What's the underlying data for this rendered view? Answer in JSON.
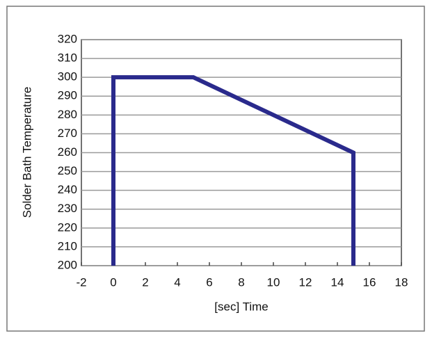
{
  "chart_data": {
    "type": "line",
    "x_label": "[sec] Time",
    "y_label": "Solder Bath Temperature",
    "x": [
      0,
      0,
      5,
      15,
      15
    ],
    "values": [
      200,
      300,
      300,
      260,
      200
    ],
    "color": "#2a2a8c",
    "xlim": [
      -2,
      18
    ],
    "xticks": [
      -2,
      0,
      2,
      4,
      6,
      8,
      10,
      12,
      14,
      16,
      18
    ],
    "ylim": [
      200,
      320
    ],
    "yticks": [
      200,
      210,
      220,
      230,
      240,
      250,
      260,
      270,
      280,
      290,
      300,
      310,
      320
    ],
    "grid": true
  }
}
